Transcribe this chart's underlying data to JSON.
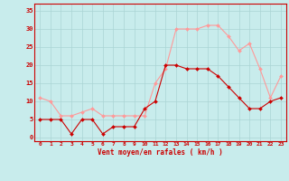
{
  "x": [
    0,
    1,
    2,
    3,
    4,
    5,
    6,
    7,
    8,
    9,
    10,
    11,
    12,
    13,
    14,
    15,
    16,
    17,
    18,
    19,
    20,
    21,
    22,
    23
  ],
  "mean_wind": [
    5,
    5,
    5,
    1,
    5,
    5,
    1,
    3,
    3,
    3,
    8,
    10,
    20,
    20,
    19,
    19,
    19,
    17,
    14,
    11,
    8,
    8,
    10,
    11
  ],
  "gust_wind": [
    11,
    10,
    6,
    6,
    7,
    8,
    6,
    6,
    6,
    6,
    6,
    15,
    19,
    30,
    30,
    30,
    31,
    31,
    28,
    24,
    26,
    19,
    11,
    17
  ],
  "bg_color": "#c8ecec",
  "grid_color": "#aad4d4",
  "mean_color": "#cc0000",
  "gust_color": "#ff9999",
  "xlabel": "Vent moyen/en rafales ( km/h )",
  "xlabel_color": "#cc0000",
  "tick_color": "#cc0000",
  "spine_color": "#cc0000",
  "ylim": [
    -1,
    37
  ],
  "yticks": [
    0,
    5,
    10,
    15,
    20,
    25,
    30,
    35
  ],
  "xlim": [
    -0.5,
    23.5
  ],
  "figsize": [
    3.2,
    2.0
  ],
  "dpi": 100
}
